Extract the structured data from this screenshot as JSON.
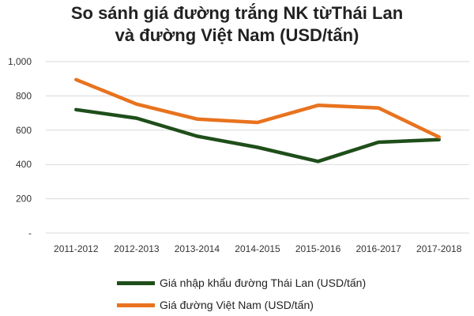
{
  "title_lines": [
    "So sánh giá đường trắng NK từThái Lan",
    "và đường Việt Nam (USD/tấn)"
  ],
  "chart_data": {
    "type": "line",
    "categories": [
      "2011-2012",
      "2012-2013",
      "2013-2014",
      "2014-2015",
      "2015-2016",
      "2016-2017",
      "2017-2018"
    ],
    "series": [
      {
        "name": "Giá nhập khẩu đường Thái Lan (USD/tấn)",
        "color": "#1f4e1a",
        "values": [
          720,
          670,
          565,
          500,
          418,
          530,
          545
        ]
      },
      {
        "name": "Giá đường Việt Nam (USD/tấn)",
        "color": "#e8731e",
        "values": [
          895,
          752,
          665,
          645,
          745,
          730,
          560
        ]
      }
    ],
    "ylim": [
      0,
      1000
    ],
    "yticks": [
      0,
      200,
      400,
      600,
      800,
      1000
    ],
    "ytick_labels": [
      "-",
      "200",
      "400",
      "600",
      "800",
      "1,000"
    ],
    "grid": true,
    "gridline_color": "#d9d9d9",
    "legend_position": "bottom"
  }
}
